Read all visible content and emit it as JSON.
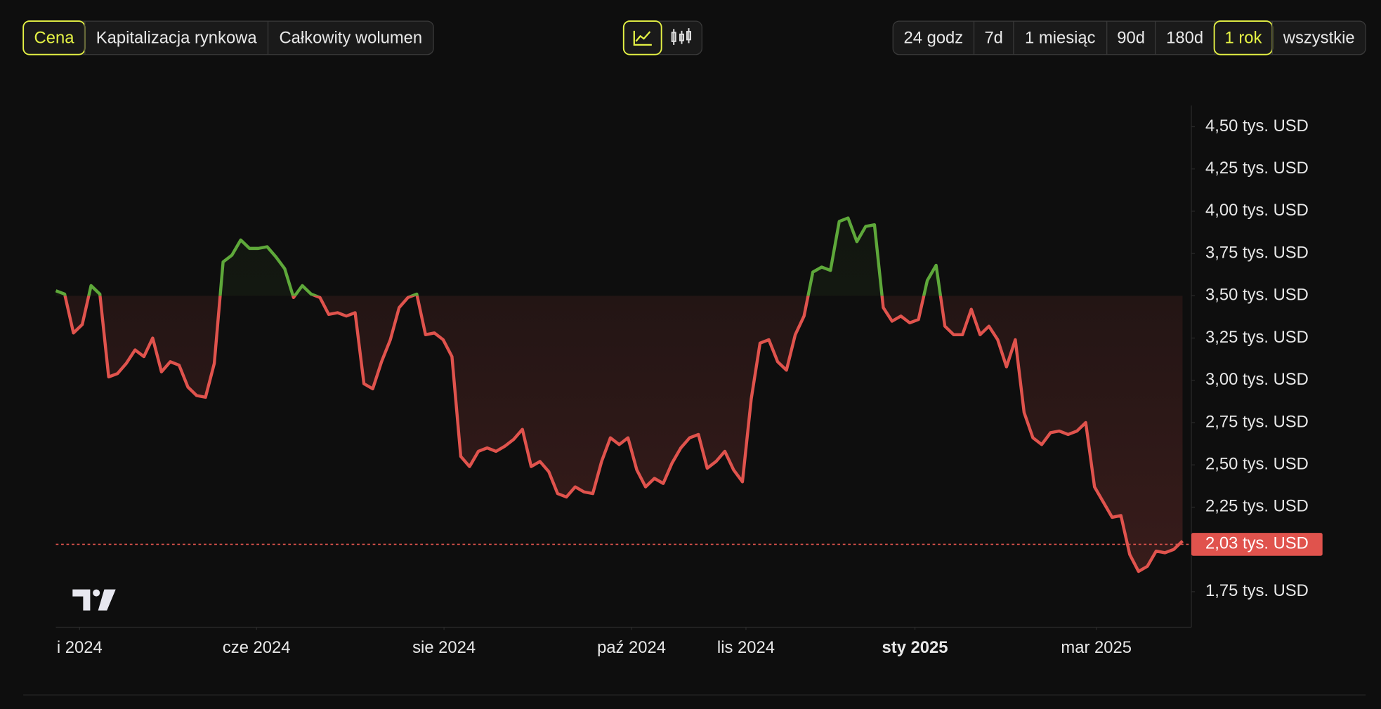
{
  "toolbar": {
    "metric_tabs": [
      {
        "label": "Cena",
        "selected": true
      },
      {
        "label": "Kapitalizacja rynkowa",
        "selected": false
      },
      {
        "label": "Całkowity wolumen",
        "selected": false
      }
    ],
    "range_tabs": [
      {
        "label": "24 godz",
        "selected": false
      },
      {
        "label": "7d",
        "selected": false
      },
      {
        "label": "1 miesiąc",
        "selected": false
      },
      {
        "label": "90d",
        "selected": false
      },
      {
        "label": "180d",
        "selected": false
      },
      {
        "label": "1 rok",
        "selected": true
      },
      {
        "label": "wszystkie",
        "selected": false
      }
    ]
  },
  "chart_data": {
    "type": "baseline",
    "values": [
      3.53,
      3.51,
      3.28,
      3.33,
      3.56,
      3.51,
      3.02,
      3.04,
      3.1,
      3.18,
      3.14,
      3.25,
      3.05,
      3.11,
      3.09,
      2.96,
      2.91,
      2.9,
      3.1,
      3.7,
      3.74,
      3.83,
      3.78,
      3.78,
      3.79,
      3.73,
      3.66,
      3.49,
      3.56,
      3.51,
      3.49,
      3.39,
      3.4,
      3.38,
      3.4,
      2.98,
      2.95,
      3.11,
      3.24,
      3.43,
      3.49,
      3.51,
      3.27,
      3.28,
      3.24,
      3.14,
      2.55,
      2.49,
      2.58,
      2.6,
      2.58,
      2.61,
      2.65,
      2.71,
      2.49,
      2.52,
      2.46,
      2.33,
      2.31,
      2.37,
      2.34,
      2.33,
      2.52,
      2.66,
      2.62,
      2.66,
      2.47,
      2.37,
      2.42,
      2.39,
      2.51,
      2.6,
      2.66,
      2.68,
      2.48,
      2.52,
      2.58,
      2.47,
      2.4,
      2.89,
      3.22,
      3.24,
      3.11,
      3.06,
      3.27,
      3.38,
      3.64,
      3.67,
      3.65,
      3.94,
      3.96,
      3.82,
      3.91,
      3.92,
      3.43,
      3.35,
      3.38,
      3.34,
      3.36,
      3.59,
      3.68,
      3.32,
      3.27,
      3.27,
      3.42,
      3.27,
      3.32,
      3.24,
      3.08,
      3.24,
      2.81,
      2.66,
      2.62,
      2.69,
      2.7,
      2.68,
      2.7,
      2.75,
      2.37,
      2.28,
      2.19,
      2.2,
      1.97,
      1.87,
      1.9,
      1.99,
      1.98,
      2.0,
      2.05
    ],
    "baseline": 3.5,
    "color_up": "#5ea83a",
    "color_down": "#e0534d",
    "xlim": [
      0,
      128.5
    ],
    "xticks": [
      {
        "value": 2.7,
        "label": "i 2024"
      },
      {
        "value": 22.8,
        "label": "cze 2024"
      },
      {
        "value": 44.1,
        "label": "sie 2024"
      },
      {
        "value": 65.4,
        "label": "paź 2024"
      },
      {
        "value": 78.4,
        "label": "lis 2024"
      },
      {
        "value": 97.6,
        "label": "sty 2025",
        "bold": true
      },
      {
        "value": 118.2,
        "label": "mar 2025"
      }
    ],
    "ylim": [
      1.54,
      4.625
    ],
    "yticks": [
      {
        "value": 4.5,
        "label": "4,50 tys. USD"
      },
      {
        "value": 4.25,
        "label": "4,25 tys. USD"
      },
      {
        "value": 4.0,
        "label": "4,00 tys. USD"
      },
      {
        "value": 3.75,
        "label": "3,75 tys. USD"
      },
      {
        "value": 3.5,
        "label": "3,50 tys. USD"
      },
      {
        "value": 3.25,
        "label": "3,25 tys. USD"
      },
      {
        "value": 3.0,
        "label": "3,00 tys. USD"
      },
      {
        "value": 2.75,
        "label": "2,75 tys. USD"
      },
      {
        "value": 2.5,
        "label": "2,50 tys. USD"
      },
      {
        "value": 2.25,
        "label": "2,25 tys. USD"
      },
      {
        "value": 1.75,
        "label": "1,75 tys. USD"
      }
    ],
    "price_line": {
      "value": 2.03,
      "label": "2,03 tys. USD"
    }
  }
}
